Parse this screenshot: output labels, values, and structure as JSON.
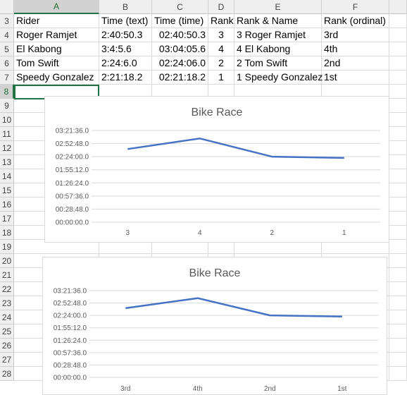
{
  "sheet": {
    "columns": [
      "A",
      "B",
      "C",
      "D",
      "E",
      "F"
    ],
    "selected_column": "A",
    "rows": [
      3,
      4,
      5,
      6,
      7,
      8,
      9,
      10,
      11,
      12,
      13,
      14,
      15,
      16,
      17,
      18,
      19,
      20,
      21,
      22,
      23,
      24,
      25,
      26,
      27,
      28
    ],
    "selected_row": 8,
    "table": [
      [
        "Rider",
        "Time (text)",
        "Time (time)",
        "Rank",
        "Rank & Name",
        "Rank (ordinal)"
      ],
      [
        "Roger Ramjet",
        "2:40:50.3",
        "02:40:50.3",
        "3",
        "3 Roger Ramjet",
        "3rd"
      ],
      [
        "El Kabong",
        "3:4:5.6",
        "03:04:05.6",
        "4",
        "4 El Kabong",
        "4th"
      ],
      [
        "Tom Swift",
        "2:24:6.0",
        "02:24:06.0",
        "2",
        "2 Tom Swift",
        "2nd"
      ],
      [
        "Speedy Gonzalez",
        "2:21:18.2",
        "02:21:18.2",
        "1",
        "1 Speedy Gonzalez",
        "1st"
      ]
    ]
  },
  "chart_data": [
    {
      "type": "line",
      "title": "Bike Race",
      "categories": [
        "3",
        "4",
        "2",
        "1"
      ],
      "values_seconds": [
        9650.3,
        11045.6,
        8646.0,
        8478.2
      ],
      "y_ticks": [
        "03:21:36.0",
        "02:52:48.0",
        "02:24:00.0",
        "01:55:12.0",
        "01:26:24.0",
        "00:57:36.0",
        "00:28:48.0",
        "00:00:00.0"
      ],
      "ylim_seconds": [
        0,
        12096
      ],
      "grid": true,
      "color": "#4472c4"
    },
    {
      "type": "line",
      "title": "Bike Race",
      "categories": [
        "3rd",
        "4th",
        "2nd",
        "1st"
      ],
      "values_seconds": [
        9650.3,
        11045.6,
        8646.0,
        8478.2
      ],
      "y_ticks": [
        "03:21:36.0",
        "02:52:48.0",
        "02:24:00.0",
        "01:55:12.0",
        "01:26:24.0",
        "00:57:36.0",
        "00:28:48.0",
        "00:00:00.0"
      ],
      "ylim_seconds": [
        0,
        12096
      ],
      "grid": true,
      "color": "#4472c4"
    }
  ]
}
